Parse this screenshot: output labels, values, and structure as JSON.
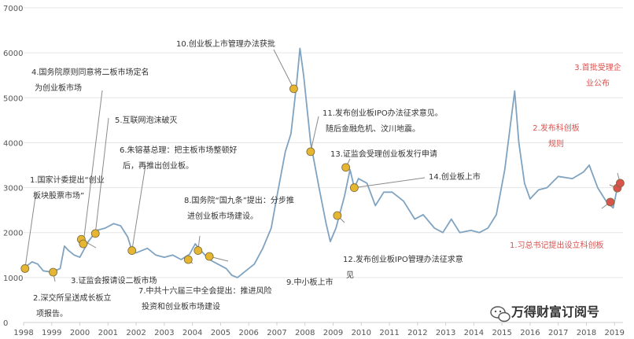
{
  "chart_data": {
    "type": "line",
    "title": "",
    "xlabel": "",
    "ylabel": "",
    "xlim": [
      1998.0,
      2019.3
    ],
    "ylim": [
      0,
      7000
    ],
    "yticks": [
      0,
      1000,
      2000,
      3000,
      4000,
      5000,
      6000,
      7000
    ],
    "ytick_labels": [
      "0",
      "1000",
      "2000",
      "3000",
      "4000",
      "5000",
      "6000",
      "7000"
    ],
    "xticks": [
      1998,
      1999,
      2000,
      2001,
      2002,
      2003,
      2004,
      2005,
      2006,
      2007,
      2008,
      2009,
      2010,
      2011,
      2012,
      2013,
      2014,
      2015,
      2016,
      2017,
      2018,
      2019
    ],
    "xtick_labels": [
      "1998",
      "1999",
      "2000",
      "2001",
      "2002",
      "2003",
      "2004",
      "2005",
      "2006",
      "2007",
      "2008",
      "2009",
      "2010",
      "2011",
      "2012",
      "2013",
      "2014",
      "2015",
      "2016",
      "2017",
      "2018",
      "2019"
    ],
    "grid": "horizontal",
    "colors": {
      "line": "#7fa3c0",
      "marker_gold": "#e6b632",
      "marker_red": "#d9534f",
      "annotation_red": "#d9534f"
    },
    "series": [
      {
        "x": [
          1998.0,
          1998.3,
          1998.5,
          1998.7,
          1999.0,
          1999.3,
          1999.45,
          1999.6,
          1999.8,
          2000.0,
          2000.3,
          2000.6,
          2000.9,
          2001.2,
          2001.45,
          2001.7,
          2001.85,
          2002.0,
          2002.4,
          2002.7,
          2003.0,
          2003.3,
          2003.6,
          2003.9,
          2004.1,
          2004.3,
          2004.6,
          2004.9,
          2005.2,
          2005.4,
          2005.6,
          2005.9,
          2006.2,
          2006.5,
          2006.8,
          2007.0,
          2007.3,
          2007.5,
          2007.7,
          2007.82,
          2007.95,
          2008.2,
          2008.5,
          2008.75,
          2008.9,
          2009.1,
          2009.4,
          2009.6,
          2009.75,
          2009.9,
          2010.2,
          2010.5,
          2010.8,
          2011.1,
          2011.5,
          2011.9,
          2012.2,
          2012.6,
          2012.9,
          2013.2,
          2013.5,
          2013.9,
          2014.2,
          2014.5,
          2014.8,
          2015.1,
          2015.3,
          2015.45,
          2015.6,
          2015.8,
          2016.0,
          2016.3,
          2016.6,
          2017.0,
          2017.5,
          2017.9,
          2018.1,
          2018.4,
          2018.7,
          2018.95,
          2019.1,
          2019.2
        ],
        "y": [
          1200,
          1350,
          1300,
          1150,
          1120,
          1200,
          1700,
          1600,
          1500,
          1450,
          1800,
          2050,
          2100,
          2200,
          2150,
          1900,
          1600,
          1550,
          1650,
          1500,
          1450,
          1500,
          1400,
          1520,
          1750,
          1600,
          1400,
          1300,
          1200,
          1050,
          1000,
          1150,
          1300,
          1650,
          2100,
          2800,
          3800,
          4200,
          5300,
          6100,
          5500,
          4000,
          3000,
          2200,
          1800,
          2100,
          2800,
          3400,
          3000,
          3200,
          3100,
          2600,
          2900,
          2900,
          2700,
          2300,
          2400,
          2100,
          2000,
          2300,
          2000,
          2050,
          2000,
          2100,
          2400,
          3400,
          4400,
          5150,
          4000,
          3100,
          2750,
          2950,
          3000,
          3250,
          3200,
          3350,
          3500,
          3000,
          2700,
          2550,
          3000,
          3150
        ]
      }
    ],
    "events": [
      {
        "date": 1998.05,
        "value": 1200,
        "color": "gold",
        "label_lines": [
          "1.国家计委提出“创业",
          "板块股票市场”"
        ]
      },
      {
        "date": 1999.05,
        "value": 1120,
        "color": "gold",
        "label_lines": [
          "2.深交所呈送成长板立",
          "项报告。"
        ]
      },
      {
        "date": 2000.05,
        "value": 1850,
        "color": "gold",
        "label_lines": [
          "3.证监会报请设二板市场"
        ]
      },
      {
        "date": 2000.12,
        "value": 1750,
        "color": "gold",
        "label_lines": [
          "4.国务院原则同意将二板市场定名",
          "为创业板市场"
        ]
      },
      {
        "date": 2000.55,
        "value": 1980,
        "color": "gold",
        "label_lines": [
          "5.互联网泡沫破灭"
        ]
      },
      {
        "date": 2001.85,
        "value": 1600,
        "color": "gold",
        "label_lines": [
          "6.朱镕基总理：把主板市场整顿好",
          "后，再推出创业板。"
        ]
      },
      {
        "date": 2003.85,
        "value": 1400,
        "color": "gold",
        "label_lines": [
          "7.中共十六届三中全会提出：推进风险",
          "投资和创业板市场建设"
        ]
      },
      {
        "date": 2004.2,
        "value": 1600,
        "color": "gold",
        "label_lines": [
          "8.国务院“国九条”提出：分步推",
          "进创业板市场建设。"
        ]
      },
      {
        "date": 2004.6,
        "value": 1470,
        "color": "gold",
        "label_lines": [
          "9.中小板上市"
        ]
      },
      {
        "date": 2007.6,
        "value": 5200,
        "color": "gold",
        "label_lines": [
          "10.创业板上市管理办法获批"
        ]
      },
      {
        "date": 2008.2,
        "value": 3800,
        "color": "gold",
        "label_lines": [
          "11.发布创业板IPO办法征求意见。",
          "随后金融危机、汶川地震。"
        ]
      },
      {
        "date": 2009.15,
        "value": 2380,
        "color": "gold",
        "label_lines": [
          "12.发布创业板IPO管理办法征求意",
          "见"
        ]
      },
      {
        "date": 2009.45,
        "value": 3450,
        "color": "gold",
        "label_lines": [
          "13.证监会受理创业板发行申请"
        ]
      },
      {
        "date": 2009.75,
        "value": 3000,
        "color": "gold",
        "label_lines": [
          "14.创业板上市"
        ]
      },
      {
        "date": 2018.85,
        "value": 2680,
        "color": "red",
        "label_lines": [
          "1.习总书记提出设立科创板"
        ]
      },
      {
        "date": 2019.1,
        "value": 2990,
        "color": "red",
        "label_lines": [
          "2.发布科创板",
          "规则"
        ]
      },
      {
        "date": 2019.2,
        "value": 3100,
        "color": "red",
        "label_lines": [
          "3.首批受理企",
          "业公布"
        ]
      }
    ]
  },
  "watermark": {
    "icon": "wechat-icon",
    "text": "万得财富订阅号"
  }
}
